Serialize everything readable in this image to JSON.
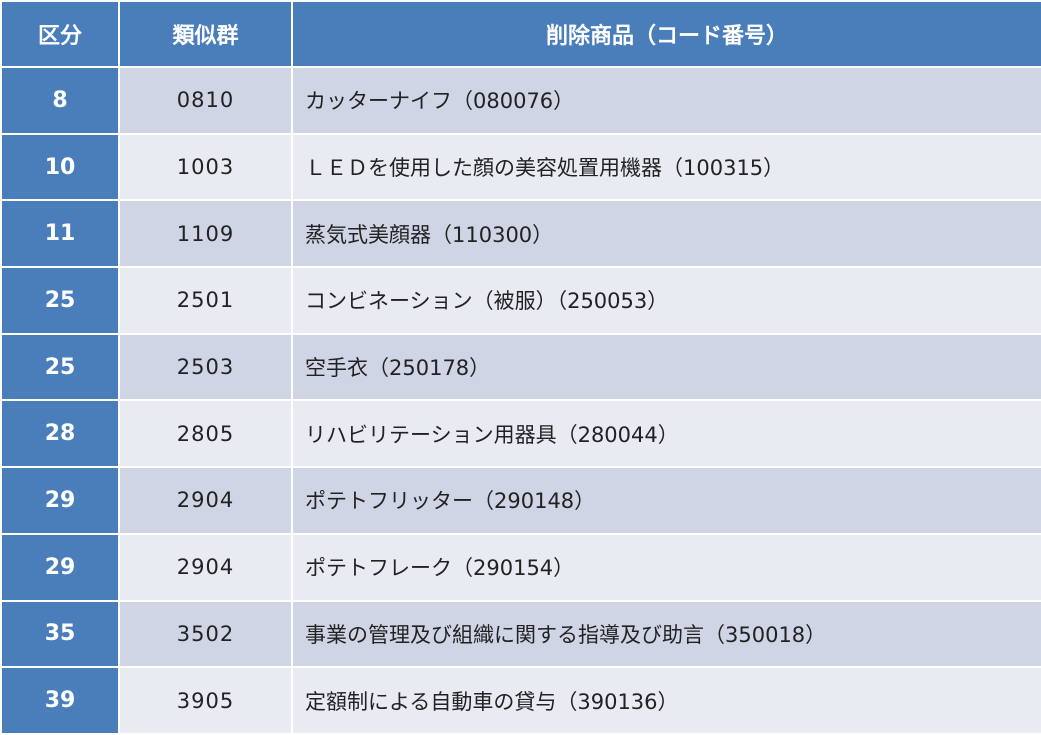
{
  "table": {
    "headers": [
      "区分",
      "類似群",
      "削除商品（コード番号）"
    ],
    "rows": [
      {
        "kubun": "8",
        "ruiji": "0810",
        "item": "カッターナイフ（080076）"
      },
      {
        "kubun": "10",
        "ruiji": "1003",
        "item": "ＬＥＤを使用した顔の美容処置用機器（100315）"
      },
      {
        "kubun": "11",
        "ruiji": "1109",
        "item": "蒸気式美顔器（110300）"
      },
      {
        "kubun": "25",
        "ruiji": "2501",
        "item": "コンビネーション（被服）（250053）"
      },
      {
        "kubun": "25",
        "ruiji": "2503",
        "item": "空手衣（250178）"
      },
      {
        "kubun": "28",
        "ruiji": "2805",
        "item": "リハビリテーション用器具（280044）"
      },
      {
        "kubun": "29",
        "ruiji": "2904",
        "item": "ポテトフリッター（290148）"
      },
      {
        "kubun": "29",
        "ruiji": "2904",
        "item": "ポテトフレーク（290154）"
      },
      {
        "kubun": "35",
        "ruiji": "3502",
        "item": "事業の管理及び組織に関する指導及び助言（350018）"
      },
      {
        "kubun": "39",
        "ruiji": "3905",
        "item": "定額制による自動車の貸与（390136）"
      }
    ]
  },
  "colors": {
    "header_bg": "#4a7ebb",
    "row_odd_bg": "#cfd5e5",
    "row_even_bg": "#e8ebf2"
  }
}
